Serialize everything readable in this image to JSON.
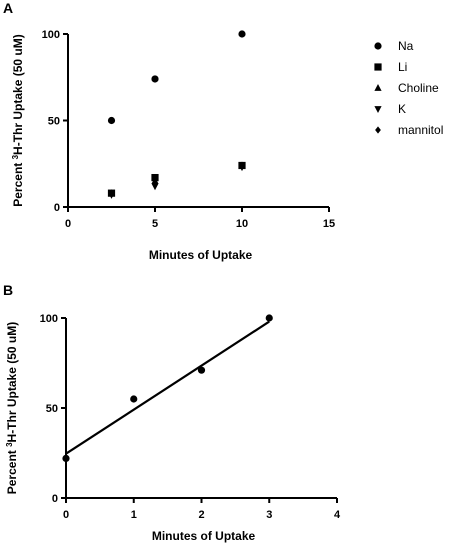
{
  "chart_data": [
    {
      "panel_label": "A",
      "type": "scatter",
      "xlabel": "Minutes of Uptake",
      "ylabel_parts": [
        "Percent ",
        "3",
        "H-Thr Uptake (50 uM)"
      ],
      "xlim": [
        0,
        15
      ],
      "ylim": [
        0,
        100
      ],
      "xticks": [
        0,
        5,
        10,
        15
      ],
      "yticks": [
        0,
        50,
        100
      ],
      "grid": false,
      "legend_position": "right",
      "series": [
        {
          "name": "Na",
          "marker": "circle",
          "points": [
            [
              2.5,
              50
            ],
            [
              5,
              74
            ],
            [
              10,
              100
            ]
          ]
        },
        {
          "name": "Li",
          "marker": "square",
          "points": [
            [
              2.5,
              8
            ],
            [
              5,
              17
            ],
            [
              10,
              24
            ]
          ]
        },
        {
          "name": "Choline",
          "marker": "triangle-up",
          "points": [
            [
              2.5,
              8
            ],
            [
              5,
              15
            ],
            [
              10,
              24
            ]
          ]
        },
        {
          "name": "K",
          "marker": "triangle-down",
          "points": [
            [
              2.5,
              7
            ],
            [
              5,
              12
            ],
            [
              10,
              23
            ]
          ]
        },
        {
          "name": "mannitol",
          "marker": "diamond",
          "points": [
            [
              2.5,
              8
            ],
            [
              5,
              16
            ],
            [
              10,
              24
            ]
          ]
        }
      ]
    },
    {
      "panel_label": "B",
      "type": "scatter",
      "xlabel": "Minutes of Uptake",
      "ylabel_parts": [
        "Percent ",
        "3",
        "H-Thr Uptake (50 uM)"
      ],
      "xlim": [
        0,
        4
      ],
      "ylim": [
        0,
        100
      ],
      "xticks": [
        0,
        1,
        2,
        3,
        4
      ],
      "yticks": [
        0,
        50,
        100
      ],
      "grid": false,
      "series": [
        {
          "name": "",
          "marker": "circle",
          "points": [
            [
              0,
              22
            ],
            [
              1,
              55
            ],
            [
              2,
              71
            ],
            [
              3,
              100
            ]
          ]
        }
      ],
      "fit_line": {
        "x": [
          0,
          3
        ],
        "y": [
          24.6,
          98
        ]
      }
    }
  ]
}
